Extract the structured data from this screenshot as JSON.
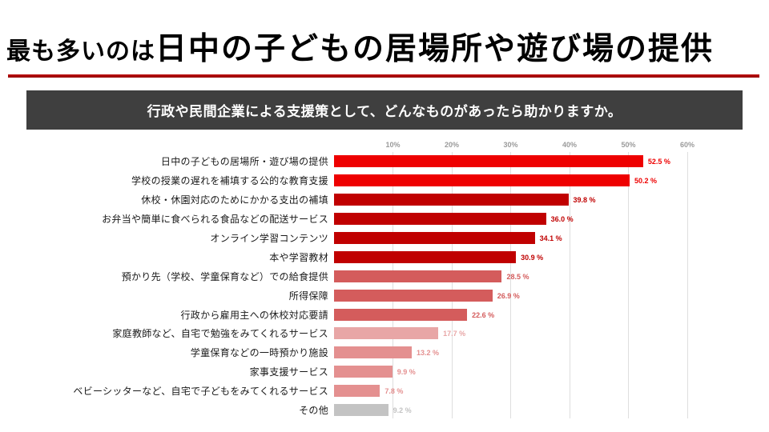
{
  "title": {
    "prefix": "最も多いのは",
    "emphasis": "日中の子どもの居場所や遊び場の提供"
  },
  "banner": {
    "text": "行政や民間企業による支援策として、どんなものがあったら助かりますか。"
  },
  "chart_data": {
    "type": "bar",
    "orientation": "horizontal",
    "title": "行政や民間企業による支援策として、どんなものがあったら助かりますか。",
    "categories": [
      "日中の子どもの居場所・遊び場の提供",
      "学校の授業の遅れを補填する公的な教育支援",
      "休校・休園対応のためにかかる支出の補填",
      "お弁当や簡単に食べられる食品などの配送サービス",
      "オンライン学習コンテンツ",
      "本や学習教材",
      "預かり先（学校、学童保育など）での給食提供",
      "所得保障",
      "行政から雇用主への休校対応要請",
      "家庭教師など、自宅で勉強をみてくれるサービス",
      "学童保育などの一時預かり施設",
      "家事支援サービス",
      "ベビーシッターなど、自宅で子どもをみてくれるサービス",
      "その他"
    ],
    "values": [
      52.5,
      50.2,
      39.8,
      36.0,
      34.1,
      30.9,
      28.5,
      26.9,
      22.6,
      17.7,
      13.2,
      9.9,
      7.8,
      9.2
    ],
    "value_labels": [
      "52.5 %",
      "50.2 %",
      "39.8 %",
      "36.0 %",
      "34.1 %",
      "30.9 %",
      "28.5 %",
      "26.9 %",
      "22.6 %",
      "17.7 %",
      "13.2 %",
      "9.9 %",
      "7.8 %",
      "9.2 %"
    ],
    "bar_colors": [
      "#ee0000",
      "#ee0000",
      "#c00000",
      "#c00000",
      "#c00000",
      "#c00000",
      "#d45c5c",
      "#d45c5c",
      "#d45c5c",
      "#e8a6a6",
      "#e49090",
      "#e49090",
      "#e49090",
      "#c3c3c3"
    ],
    "x_ticks": [
      "10%",
      "20%",
      "30%",
      "40%",
      "50%",
      "60%"
    ],
    "xlim": [
      0,
      60
    ],
    "grid": true,
    "legend": false,
    "xlabel": "",
    "ylabel": ""
  },
  "colors": {
    "title_text": "#000000",
    "title_rule": "#a80a0a",
    "banner_bg": "#3f3f3f",
    "banner_text": "#ffffff",
    "tick_text": "#9a9a9a",
    "grid_line": "#dedede",
    "accent_red": "#ee0000"
  }
}
